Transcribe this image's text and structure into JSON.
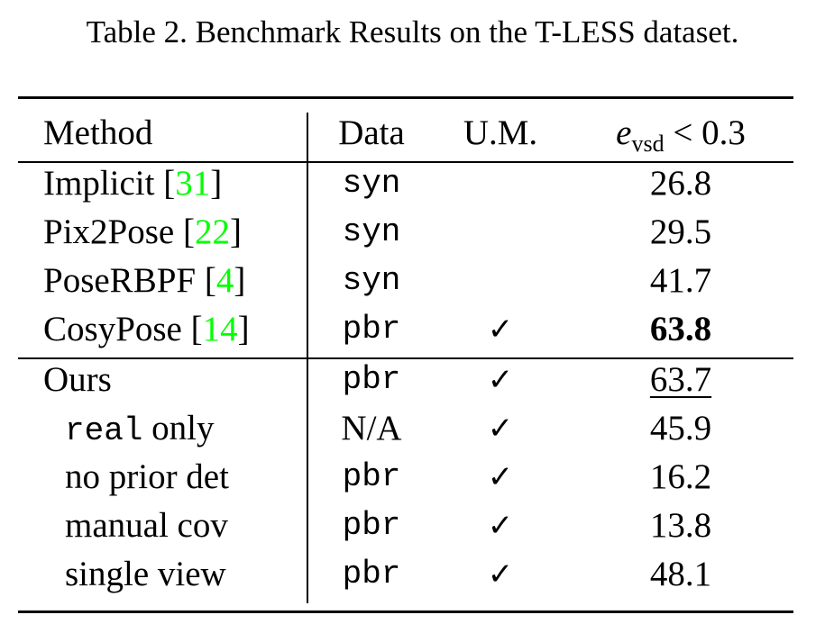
{
  "caption": "Table 2. Benchmark Results on the T-LESS dataset.",
  "header": {
    "method": "Method",
    "data": "Data",
    "um": "U.M.",
    "metric_var": "e",
    "metric_sub": "vsd",
    "metric_rest": " < 0.3"
  },
  "rows": [
    {
      "method": "Implicit ",
      "cite": "31",
      "data": "syn",
      "um": "",
      "value": "26.8"
    },
    {
      "method": "Pix2Pose ",
      "cite": "22",
      "data": "syn",
      "um": "",
      "value": "29.5"
    },
    {
      "method": "PoseRBPF ",
      "cite": "4",
      "data": "syn",
      "um": "",
      "value": "41.7"
    },
    {
      "method": "CosyPose ",
      "cite": "14",
      "data": "pbr",
      "um": "✓",
      "value": "63.8"
    },
    {
      "method": "Ours",
      "data": "pbr",
      "um": "✓",
      "value": "63.7"
    },
    {
      "method_code": "real",
      "method": " only",
      "data": "N/A",
      "um": "✓",
      "value": "45.9"
    },
    {
      "method": "no prior det",
      "data": "pbr",
      "um": "✓",
      "value": "16.2"
    },
    {
      "method": "manual cov",
      "data": "pbr",
      "um": "✓",
      "value": "13.8"
    },
    {
      "method": "single view",
      "data": "pbr",
      "um": "✓",
      "value": "48.1"
    }
  ],
  "brackets": {
    "open": "[",
    "close": "]"
  }
}
